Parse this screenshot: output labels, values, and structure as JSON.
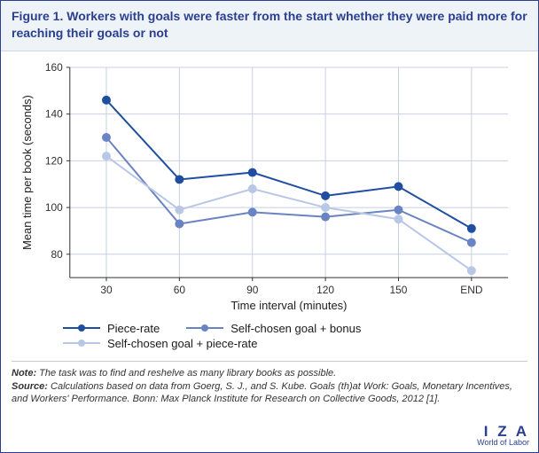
{
  "title": "Figure 1. Workers with goals were faster from the start whether they were paid more for reaching their goals or not",
  "chart": {
    "type": "line",
    "xlabel": "Time interval (minutes)",
    "ylabel": "Mean time per book (seconds)",
    "x_categories": [
      "30",
      "60",
      "90",
      "120",
      "150",
      "END"
    ],
    "ylim": [
      70,
      160
    ],
    "ytick_step": 20,
    "yticks": [
      80,
      100,
      120,
      140,
      160
    ],
    "grid_color": "#c8d0e0",
    "axis_color": "#303030",
    "background_color": "#ffffff",
    "label_fontsize": 13,
    "tick_fontsize": 12,
    "line_width": 2,
    "marker_size": 5,
    "series": [
      {
        "name": "Piece-rate",
        "color": "#1f4ea1",
        "values": [
          146,
          112,
          115,
          105,
          109,
          91
        ]
      },
      {
        "name": "Self-chosen goal + bonus",
        "color": "#6a83c2",
        "values": [
          130,
          93,
          98,
          96,
          99,
          85
        ]
      },
      {
        "name": "Self-chosen goal + piece-rate",
        "color": "#b9c7e6",
        "values": [
          122,
          99,
          108,
          100,
          95,
          73
        ]
      }
    ]
  },
  "legend": {
    "items": [
      {
        "label": "Piece-rate",
        "color": "#1f4ea1"
      },
      {
        "label": "Self-chosen goal + bonus",
        "color": "#6a83c2"
      },
      {
        "label": "Self-chosen goal + piece-rate",
        "color": "#b9c7e6"
      }
    ]
  },
  "note_label": "Note:",
  "note_text": " The task was to find and reshelve as many library books as possible.",
  "source_label": "Source:",
  "source_text_pre": " Calculations based on data from Goerg, S. J., and S. Kube. ",
  "source_title": "Goals (th)at Work: Goals, Monetary Incentives, and Workers' Performance",
  "source_text_post": ". Bonn: Max Planck Institute for Research on Collective Goods, 2012 [1].",
  "logo": {
    "primary": "I Z A",
    "sub": "World of Labor"
  }
}
